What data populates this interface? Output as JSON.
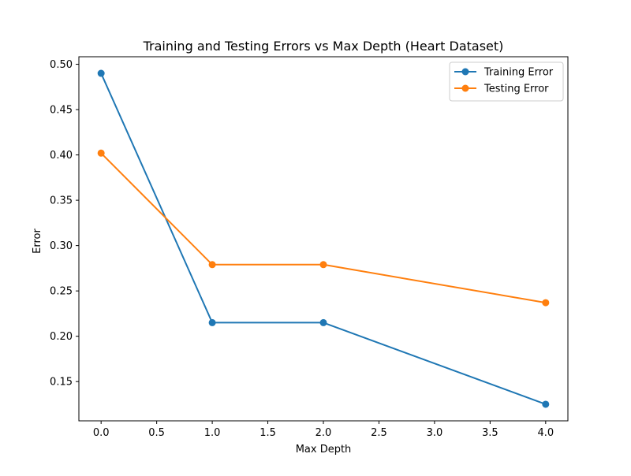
{
  "chart_data": {
    "type": "line",
    "title": "Training and Testing Errors vs Max Depth (Heart Dataset)",
    "xlabel": "Max Depth",
    "ylabel": "Error",
    "x": [
      0,
      1,
      2,
      4
    ],
    "series": [
      {
        "name": "Training Error",
        "color": "#1f77b4",
        "values": [
          0.49,
          0.215,
          0.215,
          0.125
        ]
      },
      {
        "name": "Testing Error",
        "color": "#ff7f0e",
        "values": [
          0.402,
          0.279,
          0.279,
          0.237
        ]
      }
    ],
    "xlim": [
      -0.2,
      4.2
    ],
    "ylim": [
      0.1067,
      0.5083
    ],
    "xticks": [
      0.0,
      0.5,
      1.0,
      1.5,
      2.0,
      2.5,
      3.0,
      3.5,
      4.0
    ],
    "xtick_labels": [
      "0.0",
      "0.5",
      "1.0",
      "1.5",
      "2.0",
      "2.5",
      "3.0",
      "3.5",
      "4.0"
    ],
    "yticks": [
      0.15,
      0.2,
      0.25,
      0.3,
      0.35,
      0.4,
      0.45,
      0.5
    ],
    "ytick_labels": [
      "0.15",
      "0.20",
      "0.25",
      "0.30",
      "0.35",
      "0.40",
      "0.45",
      "0.50"
    ],
    "grid": false,
    "legend_position": "top-right",
    "markers": "circle"
  }
}
